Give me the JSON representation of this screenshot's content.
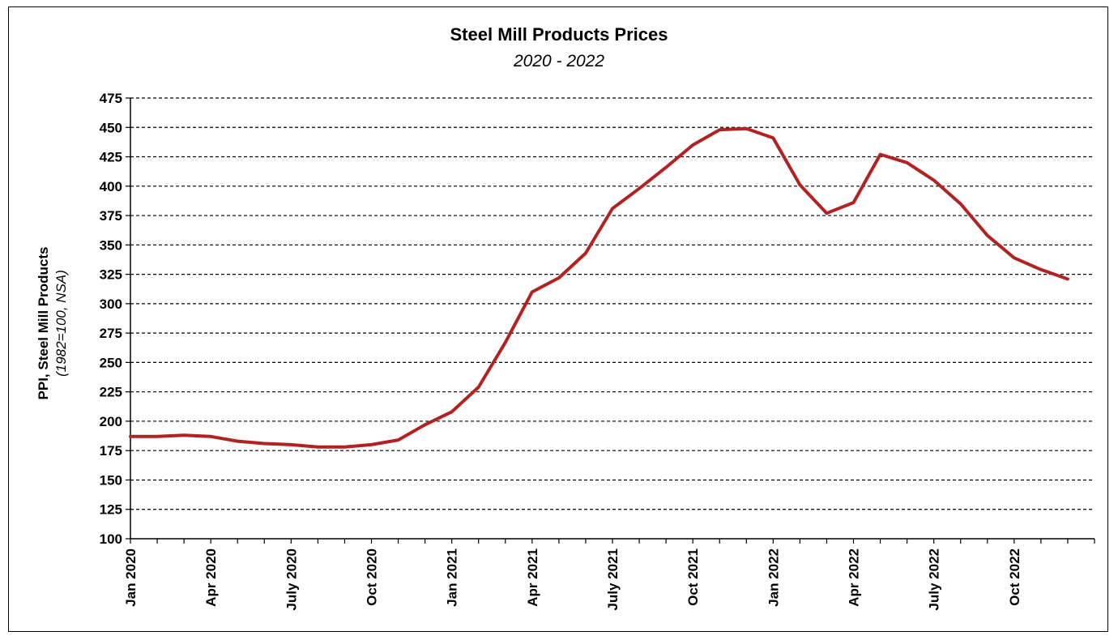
{
  "chart_data": {
    "type": "line",
    "title": "Steel Mill Products Prices",
    "subtitle": "2020 - 2022",
    "ylabel": "PPI, Steel Mill Products",
    "ylabel_sub": "(1982=100, NSA)",
    "ylim": [
      100,
      475
    ],
    "yticks": [
      100,
      125,
      150,
      175,
      200,
      225,
      250,
      275,
      300,
      325,
      350,
      375,
      400,
      425,
      450,
      475
    ],
    "grid": "horizontal-dashed",
    "line_color": "#b22222",
    "xtick_labels": [
      "Jan 2020",
      "Apr 2020",
      "July 2020",
      "Oct 2020",
      "Jan 2021",
      "Apr 2021",
      "July 2021",
      "Oct 2021",
      "Jan 2022",
      "Apr 2022",
      "July 2022",
      "Oct 2022"
    ],
    "x": [
      "Jan 2020",
      "Feb 2020",
      "Mar 2020",
      "Apr 2020",
      "May 2020",
      "Jun 2020",
      "Jul 2020",
      "Aug 2020",
      "Sep 2020",
      "Oct 2020",
      "Nov 2020",
      "Dec 2020",
      "Jan 2021",
      "Feb 2021",
      "Mar 2021",
      "Apr 2021",
      "May 2021",
      "Jun 2021",
      "Jul 2021",
      "Aug 2021",
      "Sep 2021",
      "Oct 2021",
      "Nov 2021",
      "Dec 2021",
      "Jan 2022",
      "Feb 2022",
      "Mar 2022",
      "Apr 2022",
      "May 2022",
      "Jun 2022",
      "Jul 2022",
      "Aug 2022",
      "Sep 2022",
      "Oct 2022",
      "Nov 2022",
      "Dec 2022"
    ],
    "series": [
      {
        "values": [
          187,
          187,
          188,
          187,
          183,
          181,
          180,
          178,
          178,
          180,
          184,
          197,
          208,
          229,
          267,
          310,
          322,
          343,
          381,
          398,
          416,
          435,
          448,
          449,
          441,
          401,
          377,
          386,
          427,
          420,
          405,
          385,
          358,
          339,
          329,
          321
        ]
      }
    ]
  }
}
